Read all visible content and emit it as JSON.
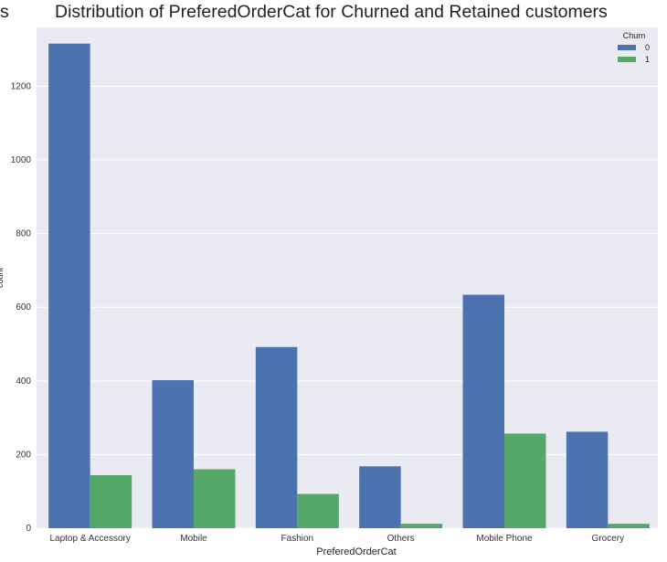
{
  "chart_data": {
    "type": "bar",
    "title": "Distribution of PreferedOrderCat for Churned and Retained customers",
    "title_cut_fragment": "s",
    "xlabel": "PreferedOrderCat",
    "ylabel": "count",
    "categories": [
      "Laptop & Accessory",
      "Mobile",
      "Fashion",
      "Others",
      "Mobile Phone",
      "Grocery"
    ],
    "series": [
      {
        "name": "0",
        "color": "#4c72b0",
        "values": [
          1316,
          402,
          492,
          168,
          634,
          262
        ]
      },
      {
        "name": "1",
        "color": "#55a868",
        "values": [
          144,
          160,
          93,
          12,
          257,
          12
        ]
      }
    ],
    "ylim": [
      0,
      1360
    ],
    "yticks": [
      0,
      200,
      400,
      600,
      800,
      1000,
      1200
    ],
    "grid": true,
    "legend": {
      "title": "Churn",
      "placement": "top-right"
    },
    "background": "#eaeaf2",
    "gridcolor": "#ffffff"
  }
}
